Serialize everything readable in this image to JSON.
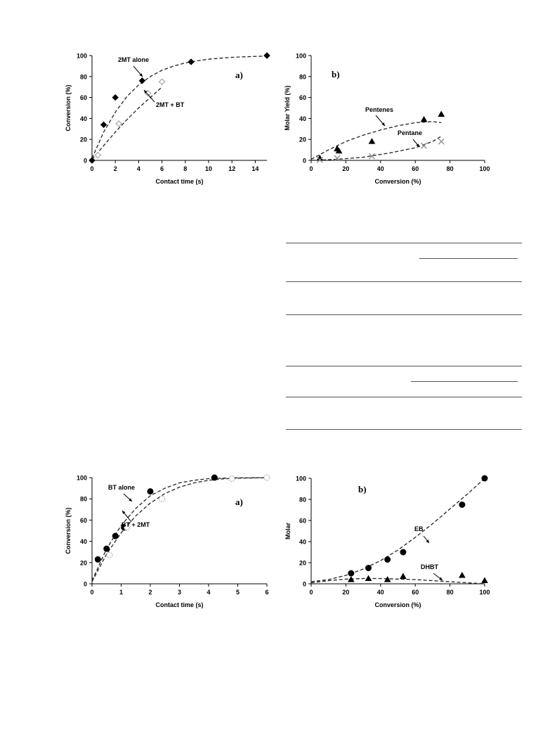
{
  "chart_data": [
    {
      "id": "c1",
      "type": "scatter",
      "xlabel": "Contact time (s)",
      "ylabel": "Conversion (%)",
      "xlim": [
        0,
        15
      ],
      "ylim": [
        0,
        100
      ],
      "xticks": [
        "0",
        "2",
        "4",
        "6",
        "8",
        "10",
        "12",
        "14"
      ],
      "yticks": [
        "0",
        "20",
        "40",
        "60",
        "80",
        "100"
      ],
      "panel_label": "a)",
      "annotations": [
        "2MT alone",
        "2MT + BT"
      ],
      "series": [
        {
          "marker": "diamond-filled",
          "x": [
            0,
            1,
            2,
            4.3,
            8.5,
            15
          ],
          "y": [
            0,
            34,
            60,
            76,
            94,
            100
          ],
          "curve_x": [
            0,
            1,
            2,
            3,
            4,
            5,
            6,
            7,
            8,
            9,
            10,
            11,
            12,
            13,
            14,
            15
          ],
          "curve_y": [
            2,
            27,
            46,
            61,
            72,
            80,
            86,
            90,
            93,
            95,
            96.5,
            97.5,
            98.3,
            98.8,
            99.2,
            99.5
          ]
        },
        {
          "marker": "diamond-open",
          "x": [
            0.5,
            2.3,
            4.8,
            6.0
          ],
          "y": [
            5,
            35,
            64,
            75
          ],
          "curve_x": [
            0,
            1,
            2,
            3,
            4,
            5,
            6
          ],
          "curve_y": [
            1,
            14,
            27,
            39,
            50,
            60,
            70
          ]
        }
      ]
    },
    {
      "id": "c2",
      "type": "scatter",
      "xlabel": "Conversion (%)",
      "ylabel": "Molar Yield (%)",
      "xlim": [
        0,
        100
      ],
      "ylim": [
        0,
        100
      ],
      "xticks": [
        "0",
        "20",
        "40",
        "60",
        "80",
        "100"
      ],
      "yticks": [
        "0",
        "20",
        "40",
        "60",
        "80",
        "100"
      ],
      "panel_label": "b)",
      "annotations": [
        "Pentenes",
        "Pentane"
      ],
      "series": [
        {
          "marker": "triangle-filled",
          "x": [
            5,
            15,
            16,
            35,
            65,
            75
          ],
          "y": [
            2,
            11,
            9,
            18,
            39,
            44
          ],
          "curve_x": [
            0,
            10,
            20,
            30,
            40,
            50,
            60,
            70,
            75
          ],
          "curve_y": [
            1,
            10,
            18,
            24,
            29,
            33,
            36,
            37,
            36
          ]
        },
        {
          "marker": "cross",
          "x": [
            5,
            15,
            35,
            65,
            75
          ],
          "y": [
            0.5,
            2,
            4,
            14,
            18
          ],
          "curve_x": [
            0,
            15,
            30,
            45,
            60,
            70,
            75
          ],
          "curve_y": [
            0,
            1,
            3,
            7,
            12,
            18,
            23
          ]
        }
      ]
    },
    {
      "id": "c3",
      "type": "scatter",
      "xlabel": "Contact time (s)",
      "ylabel": "Conversion (%)",
      "xlim": [
        0,
        6
      ],
      "ylim": [
        0,
        100
      ],
      "xticks": [
        "0",
        "1",
        "2",
        "3",
        "4",
        "5",
        "6"
      ],
      "yticks": [
        "0",
        "20",
        "40",
        "60",
        "80",
        "100"
      ],
      "panel_label": "a)",
      "annotations": [
        "BT alone",
        "BT + 2MT"
      ],
      "series": [
        {
          "marker": "circle-filled",
          "x": [
            0.2,
            0.5,
            0.8,
            1.1,
            2.0,
            4.2
          ],
          "y": [
            23,
            33,
            45,
            53,
            87,
            100
          ],
          "curve_x": [
            0,
            0.5,
            1,
            1.5,
            2,
            2.5,
            3,
            3.5,
            4,
            4.5,
            5,
            5.5,
            6
          ],
          "curve_y": [
            3,
            33,
            55,
            71,
            83,
            90,
            95,
            97.5,
            99,
            99.5,
            99.8,
            99.9,
            100
          ]
        },
        {
          "marker": "circle-open",
          "x": [
            0.6,
            1.2,
            2.4,
            4.8,
            6.0
          ],
          "y": [
            27,
            53,
            80,
            99,
            100
          ],
          "curve_x": [
            0,
            0.5,
            1,
            1.5,
            2,
            2.5,
            3,
            3.5,
            4,
            4.5,
            5,
            5.5,
            6
          ],
          "curve_y": [
            2,
            28,
            48,
            64,
            76,
            85,
            91,
            95,
            97.5,
            98.8,
            99.4,
            99.7,
            99.9
          ]
        }
      ]
    },
    {
      "id": "c4",
      "type": "scatter",
      "xlabel": "Conversion (%)",
      "ylabel": "Molar",
      "xlim": [
        0,
        100
      ],
      "ylim": [
        0,
        100
      ],
      "xticks": [
        "0",
        "20",
        "40",
        "60",
        "80",
        "100"
      ],
      "yticks": [
        "0",
        "20",
        "40",
        "60",
        "80",
        "100"
      ],
      "panel_label": "b)",
      "annotations": [
        "EB",
        "DHBT"
      ],
      "series": [
        {
          "marker": "circle-filled",
          "x": [
            23,
            33,
            44,
            53,
            87,
            100
          ],
          "y": [
            10,
            15,
            23,
            30,
            75,
            100
          ],
          "curve_x": [
            0,
            10,
            20,
            30,
            40,
            50,
            60,
            70,
            80,
            90,
            100
          ],
          "curve_y": [
            2,
            4,
            8,
            14,
            22,
            32,
            44,
            57,
            71,
            85,
            100
          ]
        },
        {
          "marker": "triangle-filled",
          "x": [
            23,
            33,
            44,
            53,
            87,
            100
          ],
          "y": [
            4,
            5,
            4,
            7,
            8,
            3
          ],
          "curve_x": [
            0,
            10,
            20,
            30,
            40,
            50,
            60,
            70,
            80,
            90,
            100
          ],
          "curve_y": [
            1,
            3,
            4.5,
            5,
            5,
            4.5,
            4,
            3,
            2,
            1,
            0
          ]
        }
      ]
    }
  ]
}
